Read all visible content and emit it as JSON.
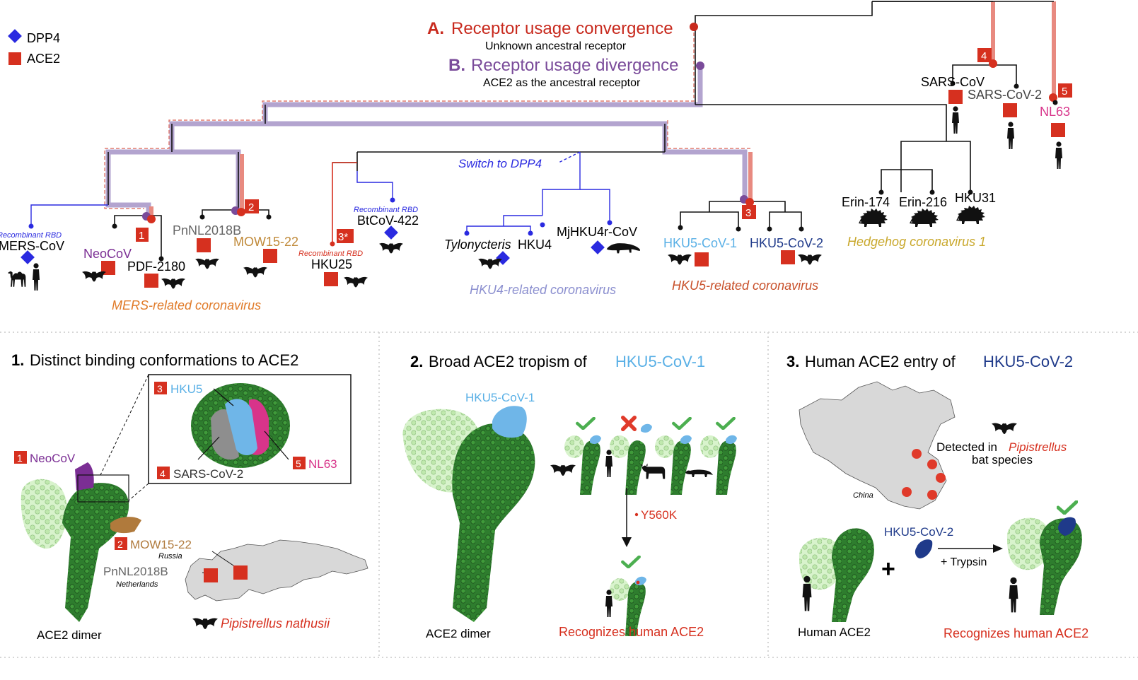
{
  "legend": {
    "dpp4": "DPP4",
    "ace2": "ACE2"
  },
  "colors": {
    "dpp4_blue": "#2a2ae0",
    "ace2_red": "#d6301f",
    "convergence_red": "#c82a1e",
    "divergence_purple": "#7a4b9a",
    "mers_orange": "#e07a28",
    "hku4_lavender": "#8b8fcf",
    "hku5_orange": "#c8502a",
    "hedgehog_gold": "#c9a82c",
    "nl63_pink": "#d8348a",
    "hku5cov1_blue": "#5ab0e6",
    "hku5cov2_navy": "#1f3a8a",
    "neocov_purple": "#7b2e94",
    "mow_tan": "#b07a3c",
    "ace2_dark_green": "#2e7d2e",
    "ace2_light_green": "#c9efb9",
    "check_green": "#4caf50"
  },
  "tree": {
    "event_a_letter": "A.",
    "event_a_title": "Receptor usage convergence",
    "event_a_sub": "Unknown ancestral receptor",
    "event_b_letter": "B.",
    "event_b_title": "Receptor usage divergence",
    "event_b_sub": "ACE2 as the ancestral receptor",
    "switch_label": "Switch to DPP4",
    "recombinant_rbd": "Recombinant RBD",
    "leaves": {
      "mers_cov": "MERS-CoV",
      "neocov": "NeoCoV",
      "pdf2180": "PDF-2180",
      "pnnl2018b": "PnNL2018B",
      "mow1522": "MOW15-22",
      "hku25": "HKU25",
      "btcov422": "BtCoV-422",
      "tylonycteris": "Tylonycteris",
      "hku4": "HKU4",
      "mjhku4r": "MjHKU4r-CoV",
      "hku5cov1": "HKU5-CoV-1",
      "hku5cov2": "HKU5-CoV-2",
      "erin174": "Erin-174",
      "erin216": "Erin-216",
      "hku31": "HKU31",
      "sarscov": "SARS-CoV",
      "sarscov2": "SARS-CoV-2",
      "nl63": "NL63"
    },
    "badges": [
      "1",
      "2",
      "3*",
      "3",
      "4",
      "5"
    ],
    "clades": {
      "mers": "MERS-related coronavirus",
      "hku4": "HKU4-related coronavirus",
      "hku5": "HKU5-related coronavirus",
      "hedgehog": "Hedgehog coronavirus 1"
    }
  },
  "panel1": {
    "num": "1.",
    "title": "Distinct binding conformations to ACE2",
    "badge_hku5": "3",
    "label_hku5": "HKU5",
    "badge_sars2": "4",
    "label_sars2": "SARS-CoV-2",
    "badge_nl63": "5",
    "label_nl63": "NL63",
    "badge_neocov": "1",
    "label_neocov": "NeoCoV",
    "badge_mow": "2",
    "label_mow": "MOW15-22",
    "label_russia": "Russia",
    "label_pnnl": "PnNL2018B",
    "label_netherlands": "Netherlands",
    "label_bat": "Pipistrellus nathusii",
    "label_dimer": "ACE2 dimer"
  },
  "panel2": {
    "num": "2.",
    "title_prefix": "Broad ACE2 tropism of ",
    "title_virus": "HKU5-CoV-1",
    "label_virus": "HKU5-CoV-1",
    "mutation": "Y560K",
    "label_dimer": "ACE2 dimer",
    "result": "Recognizes human ACE2"
  },
  "panel3": {
    "num": "3.",
    "title_prefix": "Human ACE2 entry of ",
    "title_virus": "HKU5-CoV-2",
    "detected_prefix": "Detected in ",
    "detected_genus": "Pipistrellus",
    "detected_suffix": "bat species",
    "label_china": "China",
    "label_virus": "HKU5-CoV-2",
    "plus": "+",
    "trypsin": "+ Trypsin",
    "label_human_ace2": "Human ACE2",
    "result": "Recognizes human ACE2"
  }
}
